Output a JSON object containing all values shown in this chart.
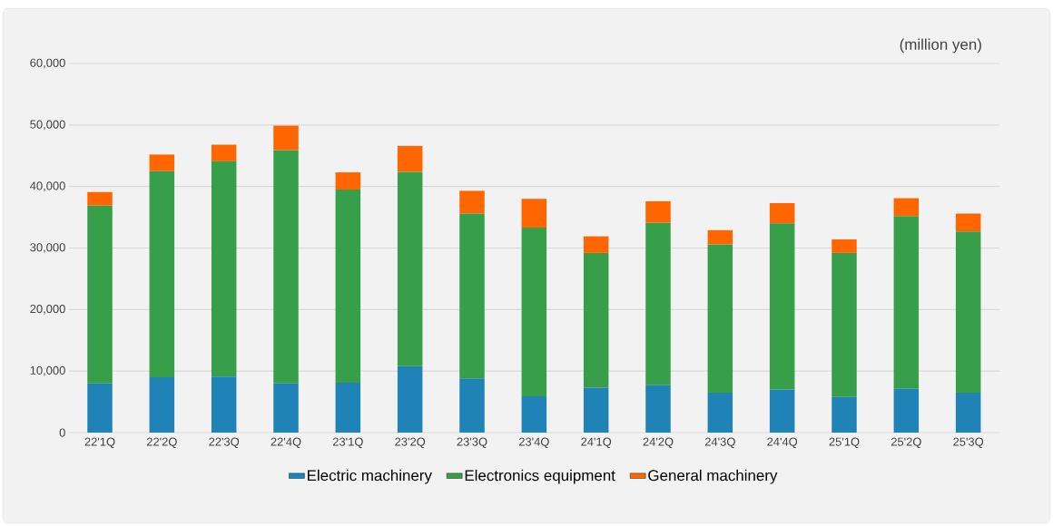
{
  "chart_data": {
    "type": "bar",
    "stacked": true,
    "categories": [
      "22'1Q",
      "22'2Q",
      "22'3Q",
      "22'4Q",
      "23'1Q",
      "23'2Q",
      "23'3Q",
      "23'4Q",
      "24'1Q",
      "24'2Q",
      "24'3Q",
      "24'4Q",
      "25'1Q",
      "25'2Q",
      "25'3Q"
    ],
    "series": [
      {
        "name": "Electric machinery",
        "color": "#1f83b8",
        "values": [
          8000,
          9000,
          9100,
          8000,
          8100,
          10800,
          8800,
          5900,
          7300,
          7700,
          6500,
          7000,
          5800,
          7100,
          6500
        ]
      },
      {
        "name": "Electronics equipment",
        "color": "#379e49",
        "values": [
          28900,
          33500,
          35000,
          37900,
          31400,
          31600,
          26800,
          27400,
          21900,
          26400,
          24100,
          27000,
          23400,
          28100,
          26200
        ]
      },
      {
        "name": "General machinery",
        "color": "#ff6600",
        "values": [
          2200,
          2700,
          2700,
          4000,
          2800,
          4200,
          3700,
          4700,
          2700,
          3500,
          2300,
          3300,
          2200,
          2900,
          2900
        ]
      }
    ],
    "ylim": [
      0,
      60000
    ],
    "yticks": [
      {
        "value": 0,
        "label": "0"
      },
      {
        "value": 10000,
        "label": "10,000"
      },
      {
        "value": 20000,
        "label": "20,000"
      },
      {
        "value": 30000,
        "label": "30,000"
      },
      {
        "value": 40000,
        "label": "40,000"
      },
      {
        "value": 50000,
        "label": "50,000"
      },
      {
        "value": 60000,
        "label": "60,000"
      }
    ],
    "grid": "y",
    "legend": "bottom",
    "annotations": [
      "(million yen)"
    ]
  }
}
